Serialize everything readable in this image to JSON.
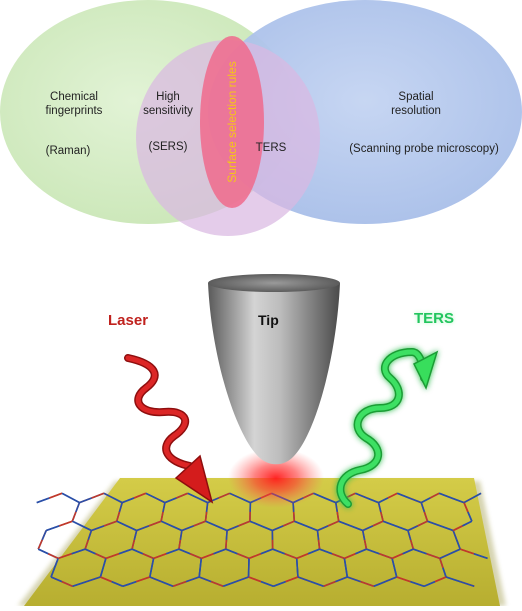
{
  "venn": {
    "chemical_title_1": "Chemical",
    "chemical_title_2": "fingerprints",
    "chemical_sub": "(Raman)",
    "sensitivity_title_1": "High",
    "sensitivity_title_2": "sensitivity",
    "sensitivity_sub": "(SERS)",
    "surface_rules": "Surface selection rules",
    "center": "TERS",
    "spatial_title_1": "Spatial",
    "spatial_title_2": "resolution",
    "spatial_sub": "(Scanning probe microscopy)"
  },
  "scheme": {
    "laser": "Laser",
    "tip": "Tip",
    "ters": "TERS"
  },
  "colors": {
    "chemical_circle": "#d4ecc4",
    "sensitivity_circle": "#d6bce0",
    "spatial_circle": "#aec4ea",
    "rules_ellipse": "#f07090",
    "rules_text": "#f4c81a",
    "laser": "#d01c1c",
    "ters_wave": "#2ad24a",
    "substrate": "#c8c03a"
  }
}
